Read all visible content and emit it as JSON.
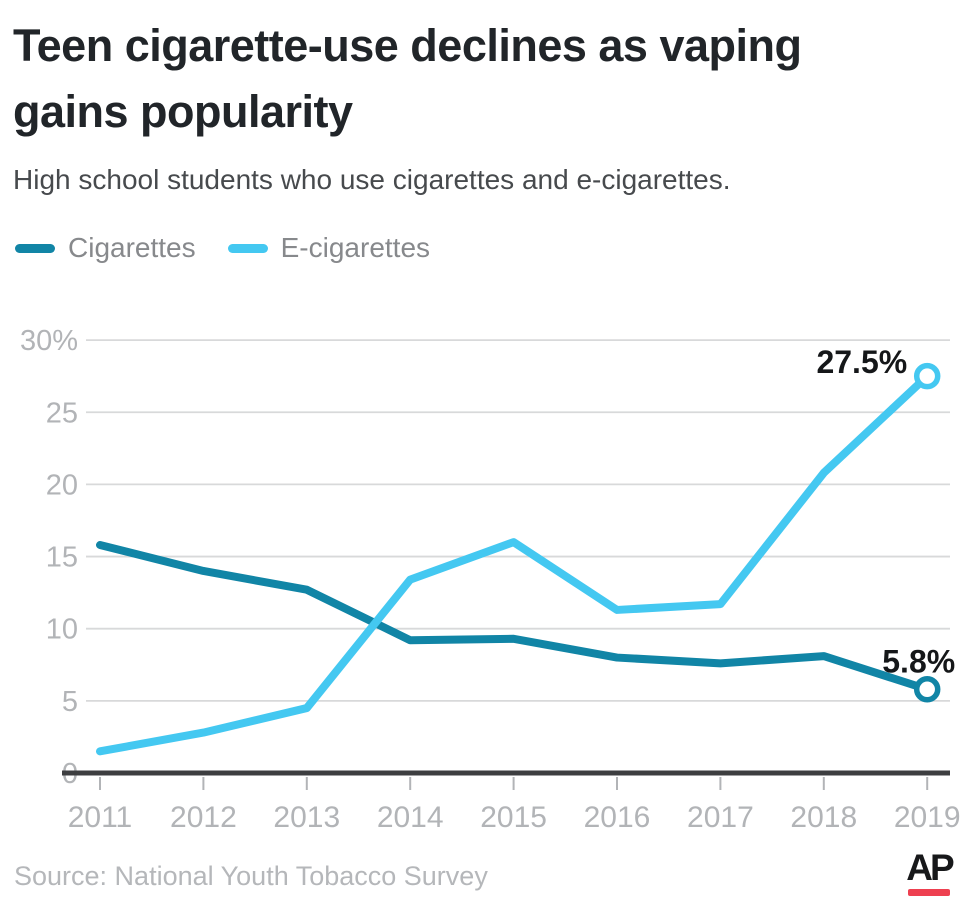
{
  "header": {
    "title": "Teen cigarette-use declines as vaping gains popularity",
    "subtitle": "High school students who use cigarettes and e-cigarettes."
  },
  "legend": {
    "items": [
      {
        "label": "Cigarettes",
        "color": "#1185a6"
      },
      {
        "label": "E-cigarettes",
        "color": "#44c8f1"
      }
    ]
  },
  "chart_data": {
    "type": "line",
    "x": [
      2011,
      2012,
      2013,
      2014,
      2015,
      2016,
      2017,
      2018,
      2019
    ],
    "series": [
      {
        "name": "Cigarettes",
        "color": "#1185a6",
        "values": [
          15.8,
          14.0,
          12.7,
          9.2,
          9.3,
          8.0,
          7.6,
          8.1,
          5.8
        ],
        "end_label": "5.8%"
      },
      {
        "name": "E-cigarettes",
        "color": "#44c8f1",
        "values": [
          1.5,
          2.8,
          4.5,
          13.4,
          16.0,
          11.3,
          11.7,
          20.8,
          27.5
        ],
        "end_label": "27.5%"
      }
    ],
    "ylim": [
      0,
      30
    ],
    "yticks": [
      0,
      5,
      10,
      15,
      20,
      25,
      30
    ],
    "ytick_top_label": "30%",
    "grid": true,
    "legend_position": "top-left",
    "colors": {
      "grid": "#d8d9da",
      "axis_line": "#3d3e40",
      "axis_text": "#b2b4b7",
      "value_label": "#151719"
    }
  },
  "footer": {
    "source": "Source: National Youth Tobacco Survey",
    "logo": "AP",
    "logo_bar_color": "#ee4050"
  }
}
